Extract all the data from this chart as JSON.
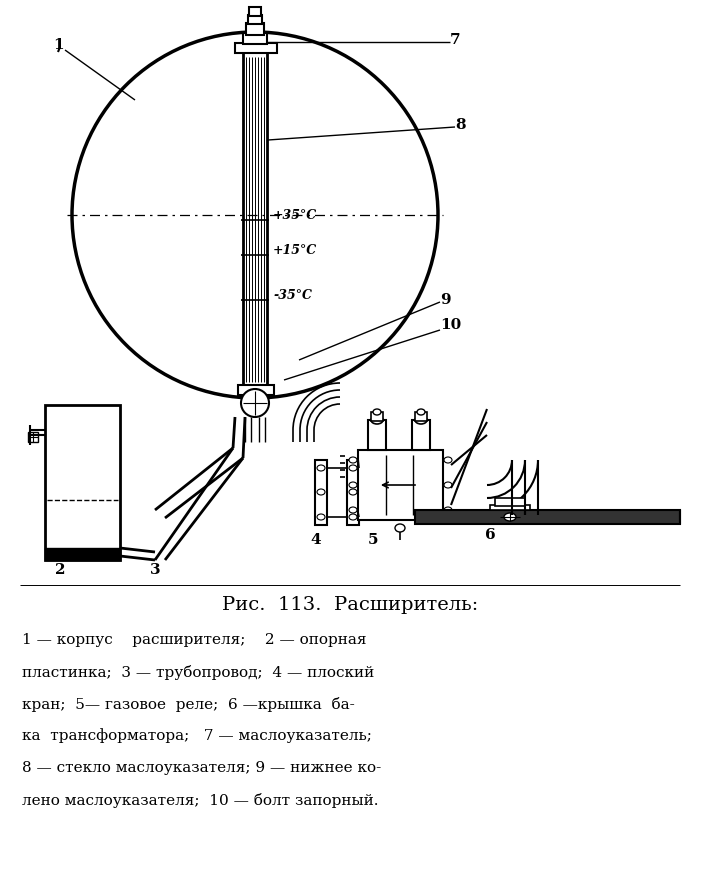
{
  "title": "Рис.  113.  Расширитель:",
  "caption_lines": [
    "1 — корпус    расширителя;    2 — опорная",
    "пластинка;  3 — трубопровод;  4 — плоский",
    "кран;  5— газовое  реле;  6 —крышка  ба-",
    "ка  трансформатора;   7 — маслоуказатель;",
    "8 — стекло маслоуказателя; 9 — нижнее ко-",
    "лено маслоуказателя;  10 — болт запорный."
  ],
  "bg": "#ffffff"
}
